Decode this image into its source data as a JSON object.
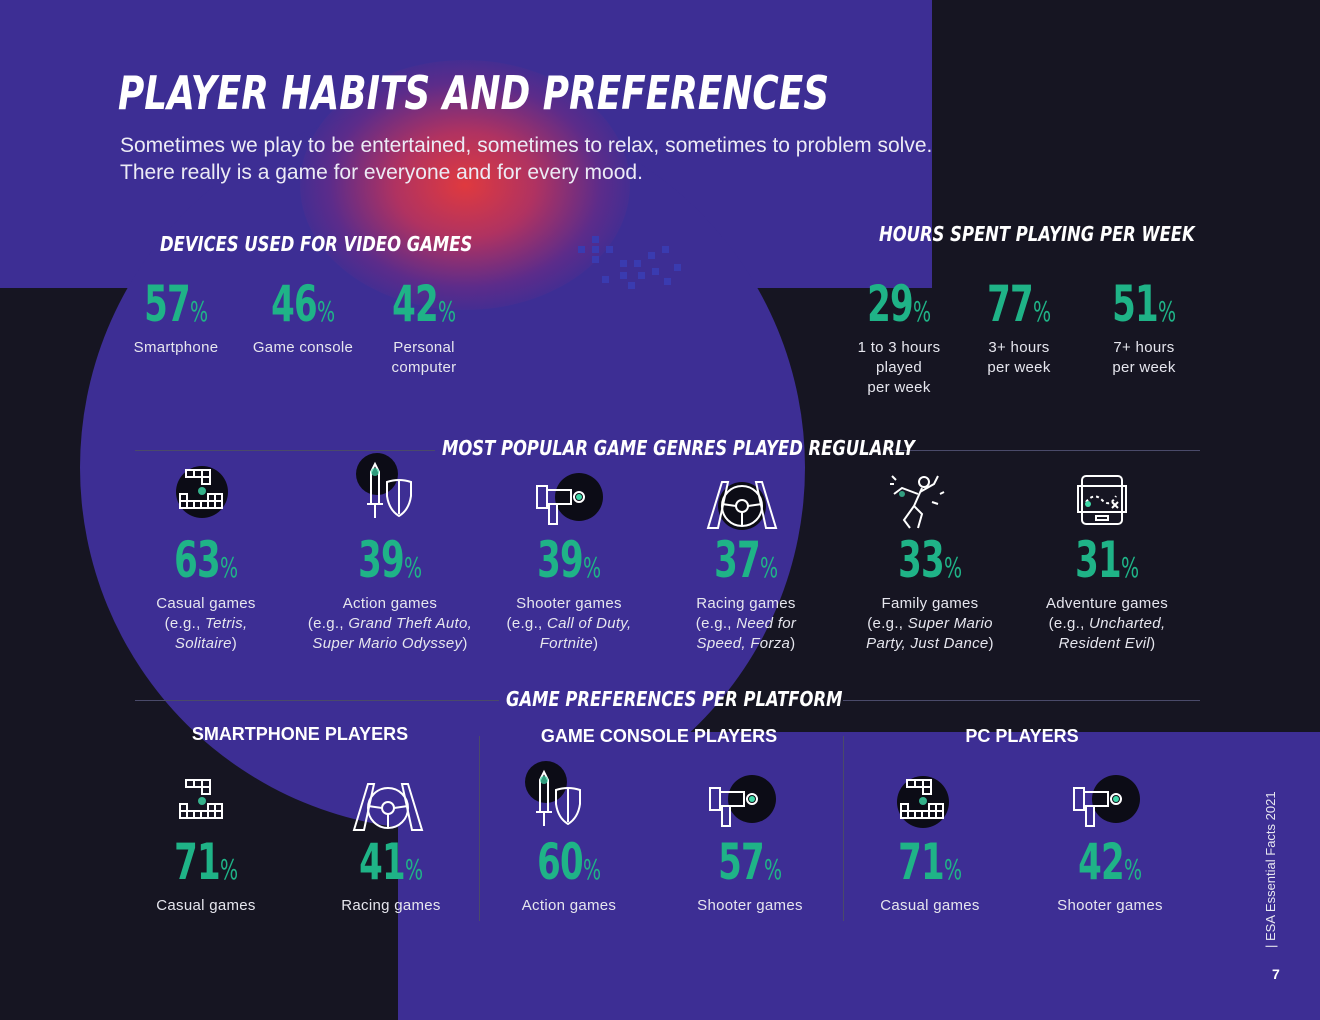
{
  "header": {
    "title": "PLAYER HABITS AND PREFERENCES",
    "subtitle_line1": "Sometimes we play to be entertained, sometimes to relax, sometimes to problem solve.",
    "subtitle_line2": "There really is a game for everyone and for every mood."
  },
  "devices": {
    "heading": "DEVICES USED FOR VIDEO GAMES",
    "items": [
      {
        "value": "57",
        "label": "Smartphone"
      },
      {
        "value": "46",
        "label": "Game console"
      },
      {
        "value": "42",
        "label_line1": "Personal",
        "label_line2": "computer"
      }
    ]
  },
  "hours": {
    "heading": "HOURS SPENT PLAYING PER WEEK",
    "items": [
      {
        "value": "29",
        "label_line1": "1 to 3 hours",
        "label_line2": "played",
        "label_line3": "per week"
      },
      {
        "value": "77",
        "label_line1": "3+ hours",
        "label_line2": "per week"
      },
      {
        "value": "51",
        "label_line1": "7+ hours",
        "label_line2": "per week"
      }
    ]
  },
  "genres": {
    "heading": "MOST POPULAR GAME GENRES PLAYED REGULARLY",
    "items": [
      {
        "value": "63",
        "name": "Casual games",
        "eg": "(e.g., ",
        "ex1": "Tetris,",
        "ex2": "Solitaire",
        "close": ")",
        "icon": "blocks-icon"
      },
      {
        "value": "39",
        "name": "Action games",
        "eg": "(e.g., ",
        "ex1": "Grand Theft Auto,",
        "ex2": "Super Mario Odyssey",
        "close": ")",
        "icon": "sword-shield-icon"
      },
      {
        "value": "39",
        "name": "Shooter games",
        "eg": "(e.g., ",
        "ex1": "Call of Duty,",
        "ex2": "Fortnite",
        "close": ")",
        "icon": "blaster-icon"
      },
      {
        "value": "37",
        "name": "Racing games",
        "eg": "(e.g., ",
        "ex1": "Need for",
        "ex2": "Speed, Forza",
        "close": ")",
        "icon": "steering-wheel-icon"
      },
      {
        "value": "33",
        "name": "Family games",
        "eg": "(e.g., ",
        "ex1": "Super Mario",
        "ex2": "Party, Just Dance",
        "close": ")",
        "icon": "dancer-icon"
      },
      {
        "value": "31",
        "name": "Adventure games",
        "eg": "(e.g., ",
        "ex1": "Uncharted,",
        "ex2": "Resident Evil",
        "close": ")",
        "icon": "treasure-map-icon"
      }
    ]
  },
  "platforms": {
    "heading": "GAME PREFERENCES PER PLATFORM",
    "smartphone": {
      "title": "SMARTPHONE PLAYERS",
      "items": [
        {
          "value": "71",
          "label": "Casual games"
        },
        {
          "value": "41",
          "label": "Racing games"
        }
      ]
    },
    "console": {
      "title": "GAME CONSOLE PLAYERS",
      "items": [
        {
          "value": "60",
          "label": "Action games"
        },
        {
          "value": "57",
          "label": "Shooter games"
        }
      ]
    },
    "pc": {
      "title": "PC PLAYERS",
      "items": [
        {
          "value": "71",
          "label": "Casual games"
        },
        {
          "value": "42",
          "label": "Shooter games"
        }
      ]
    }
  },
  "pct_symbol": "%",
  "footer": {
    "side_text": "|  ESA Essential Facts 2021",
    "page_number": "7"
  },
  "colors": {
    "purple": "#3d2e94",
    "dark": "#161522",
    "green": "#1fb387",
    "glow": "#e83a3a"
  }
}
